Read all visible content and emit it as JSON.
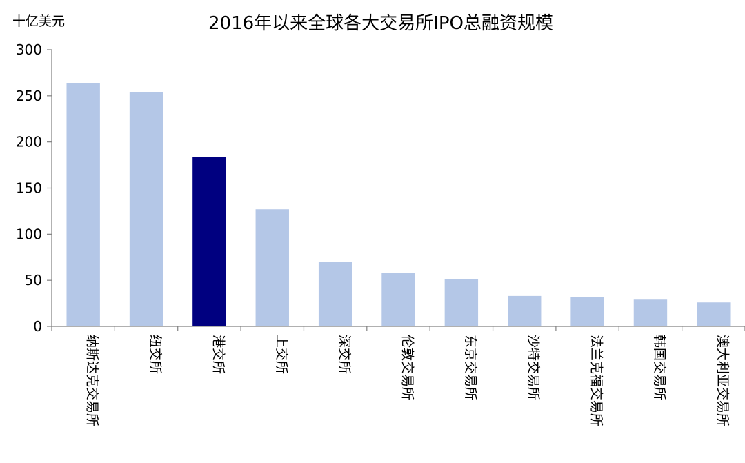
{
  "chart_data": {
    "type": "bar",
    "title": "2016年以来全球各大交易所IPO总融资规模",
    "unit_label": "十亿美元",
    "xlabel": "",
    "ylabel": "",
    "categories": [
      "纳斯达克交易所",
      "纽交所",
      "港交所",
      "上交所",
      "深交所",
      "伦敦交易所",
      "东京交易所",
      "沙特交易所",
      "法兰克福交易所",
      "韩国交易所",
      "澳大利亚交易所"
    ],
    "values": [
      264,
      254,
      184,
      127,
      70,
      58,
      51,
      33,
      32,
      29,
      26
    ],
    "highlight_index": 2,
    "ylim": [
      0,
      300
    ],
    "yticks": [
      0,
      50,
      100,
      150,
      200,
      250,
      300
    ],
    "grid": false,
    "legend": "none",
    "colors": {
      "bar": "#b4c7e7",
      "highlight": "#000080",
      "axis": "#808080",
      "text": "#000000"
    }
  }
}
